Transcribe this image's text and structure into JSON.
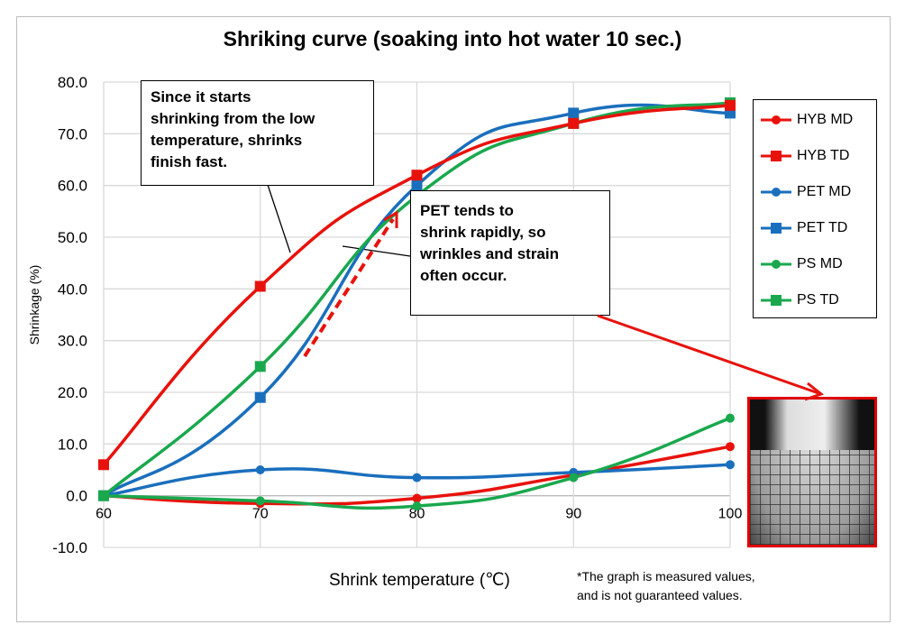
{
  "chart_data": {
    "type": "line",
    "title": "Shriking curve (soaking into hot water 10 sec.)",
    "xlabel": "Shrink temperature (℃)",
    "ylabel": "Shrinkage (%)",
    "x": [
      60,
      70,
      80,
      90,
      100
    ],
    "xlim": [
      60,
      100
    ],
    "ylim": [
      -10,
      80
    ],
    "yticks": [
      "80.0",
      "70.0",
      "60.0",
      "50.0",
      "40.0",
      "30.0",
      "20.0",
      "10.0",
      "0.0",
      "-10.0"
    ],
    "xticks": [
      "60",
      "70",
      "80",
      "90",
      "100"
    ],
    "grid": true,
    "legend_position": "right",
    "series": [
      {
        "name": "HYB MD",
        "color": "#e8120c",
        "marker": "circle",
        "values": [
          0,
          -1.5,
          -0.5,
          4,
          9.5
        ]
      },
      {
        "name": "HYB TD",
        "color": "#e8120c",
        "marker": "square",
        "values": [
          6,
          40.5,
          62,
          72,
          75.5
        ]
      },
      {
        "name": "PET MD",
        "color": "#1a6fbd",
        "marker": "circle",
        "values": [
          0,
          5,
          3.5,
          4.5,
          6
        ]
      },
      {
        "name": "PET TD",
        "color": "#1a6fbd",
        "marker": "square",
        "values": [
          0,
          19,
          60,
          74,
          74
        ]
      },
      {
        "name": "PS MD",
        "color": "#1aa84e",
        "marker": "circle",
        "values": [
          0,
          -1,
          -2,
          3.5,
          15
        ]
      },
      {
        "name": "PS TD",
        "color": "#1aa84e",
        "marker": "square",
        "values": [
          0,
          25,
          58,
          72,
          76
        ]
      }
    ],
    "annotations": [
      {
        "lines": [
          "Since it starts",
          "shrinking from the low",
          "temperature,  shrinks",
          "finish fast."
        ]
      },
      {
        "lines": [
          "PET tends to",
          "shrink rapidly, so",
          "wrinkles and strain",
          "often occur."
        ]
      }
    ],
    "footnote": [
      "*The graph is measured values,",
      "and is not guaranteed values."
    ]
  }
}
